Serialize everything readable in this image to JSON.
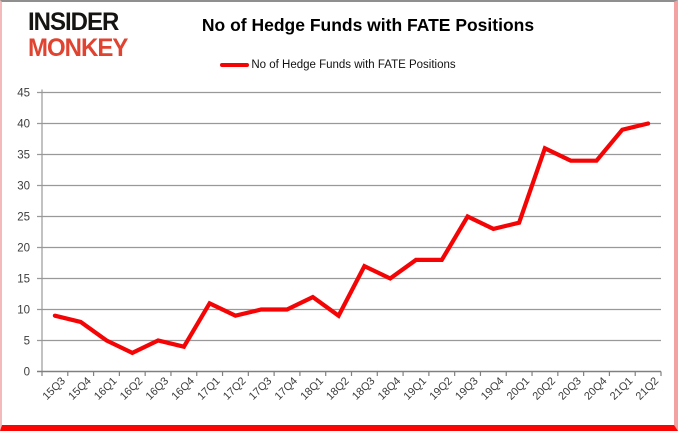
{
  "logo": {
    "line1": "INSIDER",
    "line2": "MONKEY"
  },
  "header": {
    "title": "No of Hedge Funds with FATE Positions"
  },
  "legend": {
    "label": "No of Hedge Funds with FATE Positions"
  },
  "colors": {
    "line_red": "#f40404",
    "logo_red": "#e0432f",
    "grid": "#999999",
    "axis": "#808080",
    "tick_label": "#3d3d3d",
    "frame_bottom_red": "#fb0404"
  },
  "chart_data": {
    "type": "line",
    "title": "No of Hedge Funds with FATE Positions",
    "series_name": "No of Hedge Funds with FATE Positions",
    "categories": [
      "15Q3",
      "15Q4",
      "16Q1",
      "16Q2",
      "16Q3",
      "16Q4",
      "17Q1",
      "17Q2",
      "17Q3",
      "17Q4",
      "18Q1",
      "18Q2",
      "18Q3",
      "18Q4",
      "19Q1",
      "19Q2",
      "19Q3",
      "19Q4",
      "20Q1",
      "20Q2",
      "20Q3",
      "20Q4",
      "21Q1",
      "21Q2"
    ],
    "values": [
      9,
      8,
      5,
      3,
      5,
      4,
      11,
      9,
      10,
      10,
      12,
      9,
      17,
      15,
      18,
      18,
      25,
      23,
      24,
      36,
      34,
      34,
      39,
      40
    ],
    "ylim": [
      0,
      45
    ],
    "ytick_interval": 5,
    "grid": true,
    "legend_position": "top",
    "xlabel": "",
    "ylabel": "",
    "line_color": "#f40404"
  }
}
